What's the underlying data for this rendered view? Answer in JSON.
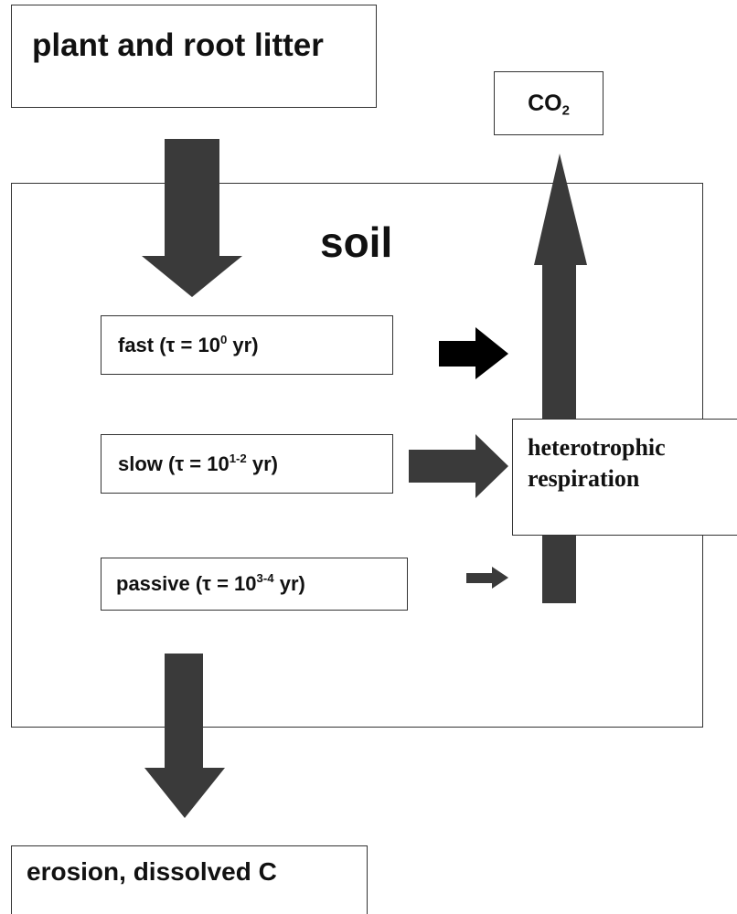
{
  "nodes": [
    {
      "label": "plant and root litter"
    },
    {
      "label": "CO",
      "sub": "2"
    },
    {
      "label": "soil"
    },
    {
      "label": "fast (τ = 10",
      "sup": "0",
      "suffix": " yr)"
    },
    {
      "label": "slow (τ = 10",
      "sup": "1-2",
      "suffix": " yr)"
    },
    {
      "label": "passive (τ = 10",
      "sup": "3-4",
      "suffix": " yr)"
    },
    {
      "lines": [
        "heterotrophic",
        "respiration"
      ]
    },
    {
      "label": "erosion, dissolved C"
    }
  ]
}
